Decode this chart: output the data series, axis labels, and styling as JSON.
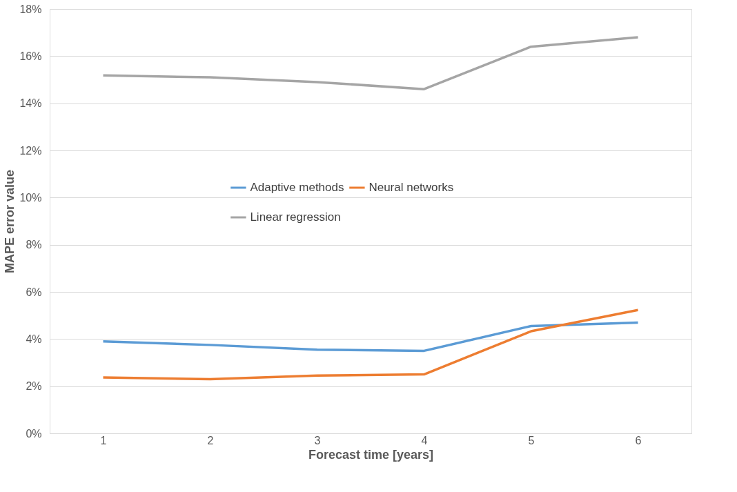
{
  "chart_data": {
    "type": "line",
    "xlabel": "Forecast time [years]",
    "ylabel": "MAPE error value",
    "categories": [
      "1",
      "2",
      "3",
      "4",
      "5",
      "6"
    ],
    "series": [
      {
        "name": "Adaptive methods",
        "color": "#5b9bd5",
        "values": [
          3.9,
          3.75,
          3.55,
          3.5,
          4.55,
          4.7
        ]
      },
      {
        "name": "Neural networks",
        "color": "#ed7d31",
        "values": [
          2.37,
          2.3,
          2.45,
          2.5,
          4.33,
          5.23
        ]
      },
      {
        "name": "Linear regression",
        "color": "#a5a5a5",
        "values": [
          15.18,
          15.1,
          14.9,
          14.6,
          16.4,
          16.8
        ]
      }
    ],
    "ylim": [
      0,
      18
    ],
    "yticks": [
      {
        "value": 0,
        "label": "0%"
      },
      {
        "value": 2,
        "label": "2%"
      },
      {
        "value": 4,
        "label": "4%"
      },
      {
        "value": 6,
        "label": "6%"
      },
      {
        "value": 8,
        "label": "8%"
      },
      {
        "value": 10,
        "label": "10%"
      },
      {
        "value": 12,
        "label": "12%"
      },
      {
        "value": 14,
        "label": "14%"
      },
      {
        "value": 16,
        "label": "16%"
      },
      {
        "value": 18,
        "label": "18%"
      }
    ],
    "grid": "y",
    "legend": "center",
    "marker": "none",
    "line_style": "solid"
  }
}
